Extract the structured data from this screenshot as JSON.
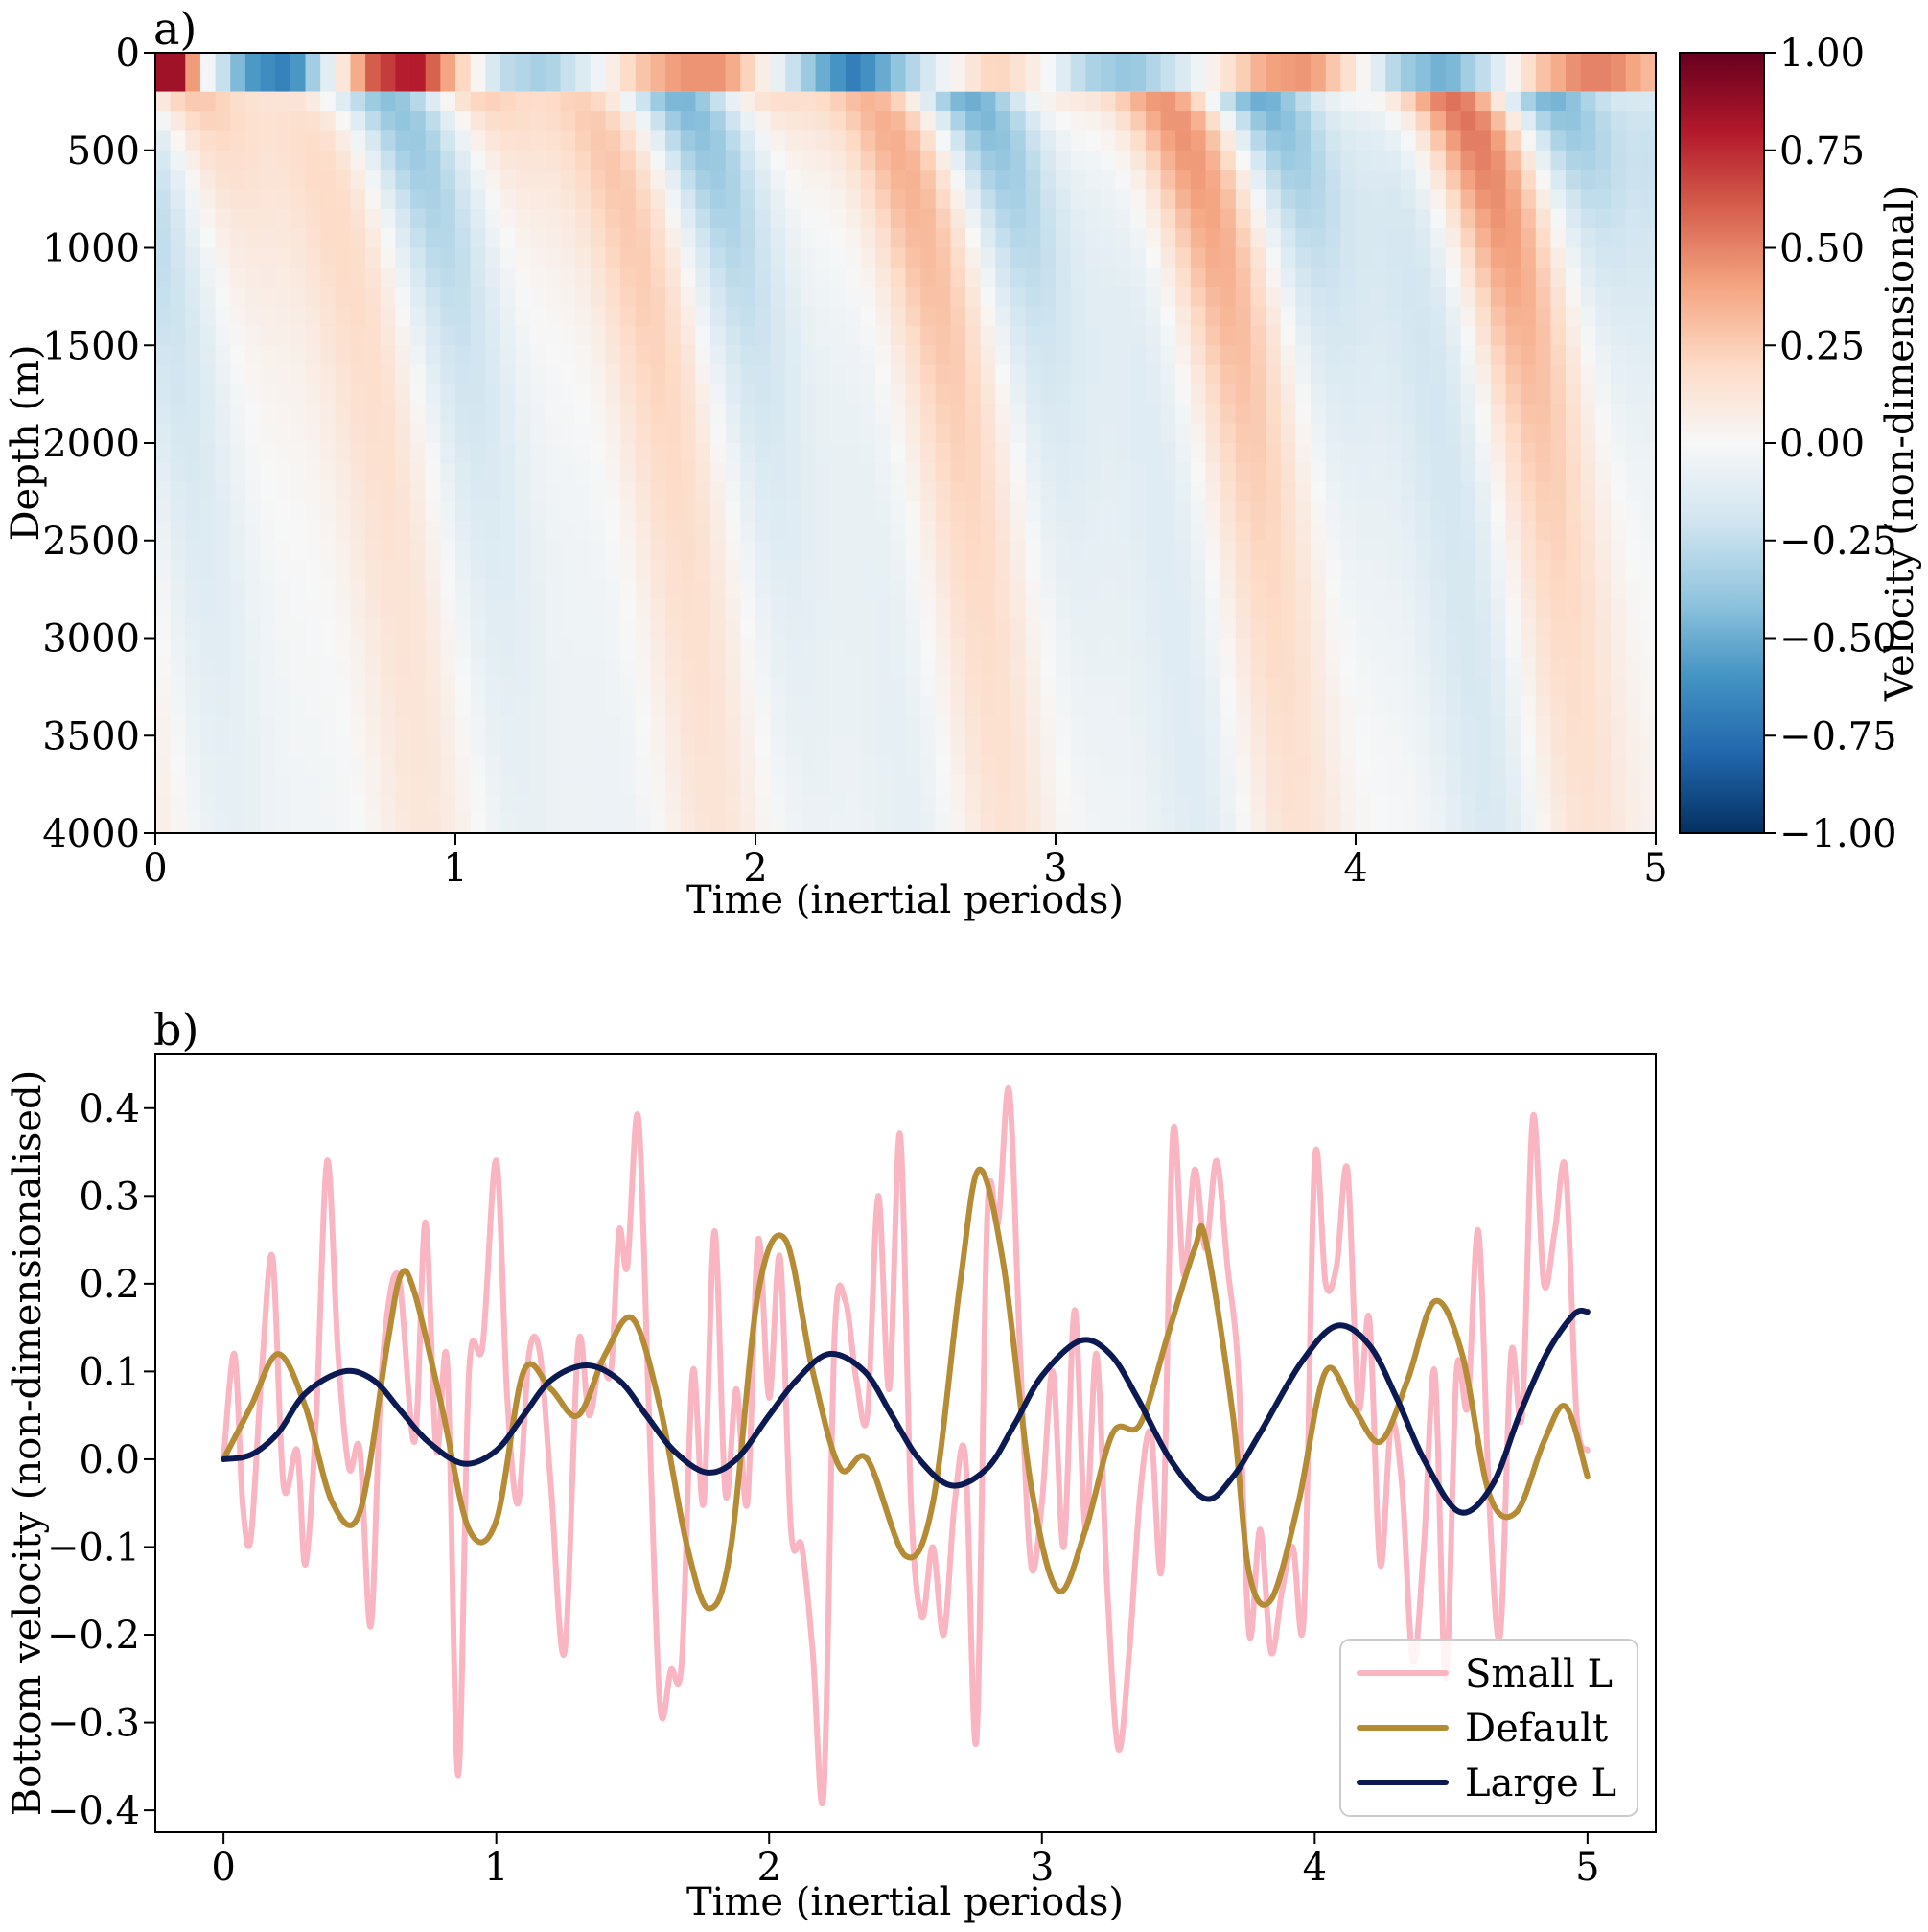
{
  "chart_data": [
    {
      "type": "heatmap",
      "panel_label": "a)",
      "xlabel": "Time (inertial periods)",
      "ylabel": "Depth (m)",
      "xlim": [
        0,
        5
      ],
      "ylim": [
        4000,
        0
      ],
      "xticks": [
        0,
        1,
        2,
        3,
        4,
        5
      ],
      "yticks": [
        0,
        500,
        1000,
        1500,
        2000,
        2500,
        3000,
        3500,
        4000
      ],
      "surface_layer_depth": 200,
      "colormap": "RdBu_r",
      "colorbar": {
        "label": "Velocity (non-dimensional)",
        "range": [
          -1.0,
          1.0
        ],
        "ticks": [
          "1.00",
          "0.75",
          "0.50",
          "0.25",
          "0.00",
          "−0.25",
          "−0.50",
          "−0.75",
          "−1.00"
        ],
        "colors": [
          "#053061",
          "#2166ac",
          "#4393c3",
          "#92c5de",
          "#d1e5f0",
          "#f7f7f7",
          "#fddbc7",
          "#f4a582",
          "#d6604d",
          "#b2182b",
          "#67001f"
        ]
      },
      "surface_layer_series": {
        "t": [
          0.0,
          0.08,
          0.17,
          0.3,
          0.45,
          0.6,
          0.72,
          0.86,
          1.0,
          1.15,
          1.3,
          1.45,
          1.6,
          1.75,
          1.9,
          2.05,
          2.2,
          2.33,
          2.5,
          2.65,
          2.8,
          2.95,
          3.1,
          3.25,
          3.4,
          3.55,
          3.7,
          3.85,
          4.0,
          4.15,
          4.3,
          4.45,
          4.6,
          4.75,
          4.85,
          5.0
        ],
        "v": [
          0.85,
          0.85,
          0.0,
          -0.55,
          -0.7,
          0.0,
          0.6,
          0.85,
          0.3,
          -0.25,
          -0.35,
          -0.1,
          0.25,
          0.45,
          0.45,
          0.0,
          -0.45,
          -0.7,
          -0.35,
          0.0,
          0.25,
          0.05,
          -0.3,
          -0.4,
          -0.2,
          0.1,
          0.4,
          0.45,
          0.1,
          -0.35,
          -0.5,
          -0.2,
          0.25,
          0.5,
          0.5,
          0.3
        ]
      }
    },
    {
      "type": "line",
      "panel_label": "b)",
      "xlabel": "Time (inertial periods)",
      "ylabel": "Bottom velocity (non-dimensionalised)",
      "xlim": [
        -0.25,
        5.25
      ],
      "ylim": [
        -0.425,
        0.462
      ],
      "xticks": [
        0,
        1,
        2,
        3,
        4,
        5
      ],
      "yticks": [
        0.4,
        0.3,
        0.2,
        0.1,
        0.0,
        -0.1,
        -0.2,
        -0.3,
        -0.4
      ],
      "ytick_labels": [
        "0.4",
        "0.3",
        "0.2",
        "0.1",
        "0.0",
        "−0.1",
        "−0.2",
        "−0.3",
        "−0.4"
      ],
      "legend": "lower-right",
      "series": [
        {
          "name": "Small L",
          "color": "#f9b5c1",
          "x": [
            0.0,
            0.04,
            0.07,
            0.1,
            0.14,
            0.18,
            0.22,
            0.27,
            0.3,
            0.34,
            0.38,
            0.42,
            0.46,
            0.5,
            0.54,
            0.58,
            0.64,
            0.7,
            0.74,
            0.78,
            0.82,
            0.86,
            0.9,
            0.95,
            1.0,
            1.04,
            1.08,
            1.12,
            1.16,
            1.2,
            1.25,
            1.3,
            1.34,
            1.38,
            1.42,
            1.45,
            1.48,
            1.52,
            1.56,
            1.6,
            1.64,
            1.68,
            1.72,
            1.76,
            1.8,
            1.84,
            1.88,
            1.92,
            1.96,
            2.0,
            2.04,
            2.08,
            2.12,
            2.16,
            2.2,
            2.24,
            2.28,
            2.32,
            2.36,
            2.4,
            2.44,
            2.48,
            2.52,
            2.56,
            2.6,
            2.64,
            2.68,
            2.72,
            2.76,
            2.8,
            2.84,
            2.88,
            2.92,
            2.96,
            3.0,
            3.04,
            3.08,
            3.12,
            3.16,
            3.2,
            3.24,
            3.28,
            3.32,
            3.36,
            3.4,
            3.44,
            3.48,
            3.52,
            3.56,
            3.6,
            3.64,
            3.68,
            3.72,
            3.76,
            3.8,
            3.84,
            3.88,
            3.92,
            3.96,
            4.0,
            4.04,
            4.08,
            4.12,
            4.16,
            4.2,
            4.24,
            4.28,
            4.32,
            4.36,
            4.4,
            4.44,
            4.48,
            4.52,
            4.56,
            4.6,
            4.64,
            4.68,
            4.72,
            4.76,
            4.8,
            4.84,
            4.88,
            4.92,
            4.96,
            5.0
          ],
          "y": [
            0.0,
            0.12,
            -0.05,
            -0.09,
            0.1,
            0.23,
            -0.03,
            0.01,
            -0.12,
            0.05,
            0.34,
            0.12,
            -0.01,
            0.01,
            -0.19,
            0.1,
            0.21,
            0.02,
            0.27,
            0.01,
            0.11,
            -0.36,
            0.1,
            0.13,
            0.34,
            0.07,
            -0.05,
            0.12,
            0.12,
            -0.03,
            -0.22,
            0.13,
            0.05,
            0.11,
            0.1,
            0.26,
            0.22,
            0.39,
            0.05,
            -0.28,
            -0.24,
            -0.23,
            0.1,
            -0.05,
            0.26,
            -0.04,
            0.08,
            -0.05,
            0.25,
            0.07,
            0.23,
            -0.08,
            -0.1,
            -0.22,
            -0.38,
            0.14,
            0.18,
            0.09,
            0.05,
            0.3,
            0.08,
            0.37,
            -0.05,
            -0.18,
            -0.1,
            -0.2,
            -0.05,
            0.0,
            -0.32,
            0.28,
            0.27,
            0.42,
            0.12,
            -0.12,
            -0.05,
            0.1,
            -0.1,
            0.17,
            -0.08,
            0.12,
            -0.15,
            -0.33,
            -0.22,
            -0.04,
            0.03,
            -0.12,
            0.37,
            0.21,
            0.33,
            0.24,
            0.34,
            0.22,
            0.1,
            -0.2,
            -0.08,
            -0.22,
            -0.15,
            -0.1,
            -0.18,
            0.34,
            0.2,
            0.22,
            0.33,
            0.06,
            0.16,
            -0.12,
            0.04,
            -0.03,
            -0.23,
            -0.1,
            0.1,
            -0.25,
            0.1,
            0.06,
            0.26,
            -0.05,
            -0.2,
            0.12,
            0.05,
            0.39,
            0.2,
            0.26,
            0.33,
            0.05,
            0.01
          ]
        },
        {
          "name": "Default",
          "color": "#b58c35",
          "x": [
            0.0,
            0.1,
            0.2,
            0.3,
            0.4,
            0.5,
            0.6,
            0.65,
            0.7,
            0.8,
            0.9,
            1.0,
            1.1,
            1.2,
            1.3,
            1.4,
            1.5,
            1.6,
            1.7,
            1.78,
            1.86,
            1.96,
            2.06,
            2.16,
            2.26,
            2.36,
            2.5,
            2.6,
            2.7,
            2.77,
            2.86,
            2.96,
            3.06,
            3.16,
            3.26,
            3.36,
            3.46,
            3.56,
            3.6,
            3.7,
            3.76,
            3.84,
            3.94,
            4.04,
            4.14,
            4.24,
            4.34,
            4.44,
            4.54,
            4.64,
            4.74,
            4.84,
            4.92,
            5.0
          ],
          "y": [
            0.0,
            0.06,
            0.12,
            0.06,
            -0.05,
            -0.06,
            0.13,
            0.21,
            0.19,
            0.06,
            -0.08,
            -0.07,
            0.1,
            0.08,
            0.05,
            0.12,
            0.16,
            0.06,
            -0.1,
            -0.17,
            -0.1,
            0.19,
            0.25,
            0.1,
            -0.01,
            0.0,
            -0.11,
            -0.05,
            0.2,
            0.33,
            0.22,
            -0.03,
            -0.15,
            -0.08,
            0.03,
            0.04,
            0.14,
            0.24,
            0.25,
            0.05,
            -0.13,
            -0.16,
            -0.05,
            0.1,
            0.06,
            0.02,
            0.09,
            0.18,
            0.12,
            -0.04,
            -0.06,
            0.02,
            0.06,
            -0.02
          ]
        },
        {
          "name": "Large L",
          "color": "#0b1a52",
          "x": [
            0.0,
            0.1,
            0.2,
            0.3,
            0.44,
            0.55,
            0.65,
            0.75,
            0.88,
            1.0,
            1.1,
            1.2,
            1.33,
            1.45,
            1.55,
            1.65,
            1.77,
            1.88,
            2.0,
            2.1,
            2.22,
            2.35,
            2.45,
            2.55,
            2.67,
            2.8,
            2.9,
            3.0,
            3.14,
            3.25,
            3.35,
            3.47,
            3.6,
            3.7,
            3.8,
            3.95,
            4.08,
            4.2,
            4.3,
            4.4,
            4.53,
            4.65,
            4.75,
            4.85,
            4.95,
            5.0
          ],
          "y": [
            0.0,
            0.005,
            0.03,
            0.075,
            0.1,
            0.09,
            0.055,
            0.02,
            -0.005,
            0.01,
            0.05,
            0.09,
            0.107,
            0.09,
            0.05,
            0.01,
            -0.015,
            0.0,
            0.05,
            0.09,
            0.12,
            0.1,
            0.05,
            0.0,
            -0.03,
            -0.01,
            0.04,
            0.095,
            0.135,
            0.12,
            0.07,
            0.0,
            -0.045,
            -0.02,
            0.03,
            0.11,
            0.152,
            0.13,
            0.07,
            0.0,
            -0.06,
            -0.03,
            0.05,
            0.12,
            0.165,
            0.168
          ]
        }
      ]
    }
  ]
}
